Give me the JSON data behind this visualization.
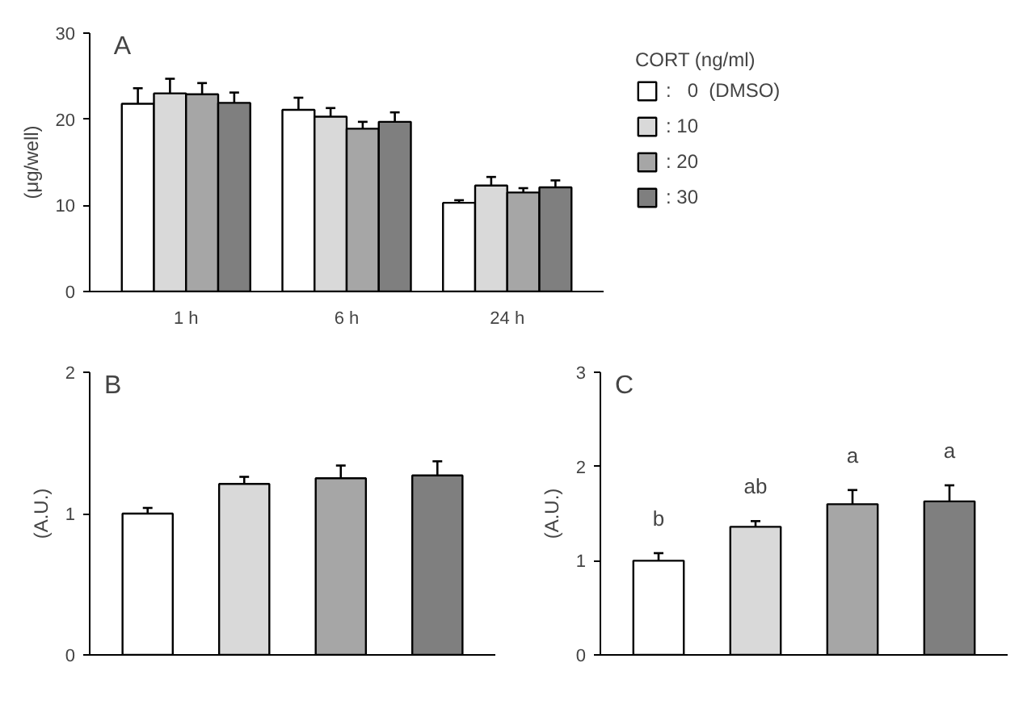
{
  "chart_data": [
    {
      "type": "bar",
      "title": "A",
      "ylabel": "(μg/well)",
      "categories": [
        "1 h",
        "6 h",
        "24 h"
      ],
      "ylim": [
        0,
        30
      ],
      "yticks": [
        0,
        10,
        20,
        30
      ],
      "grid": false,
      "legend": "right",
      "legend_title": "CORT (ng/ml)",
      "series": [
        {
          "name": ":   0  (DMSO)",
          "color": "#ffffff",
          "values": [
            21.8,
            21.1,
            10.3
          ],
          "errors": [
            [
              21.8,
              23.6
            ],
            [
              21.1,
              22.5
            ],
            [
              10.3,
              10.6
            ]
          ]
        },
        {
          "name": ": 10",
          "color": "#d9d9d9",
          "values": [
            23.0,
            20.3,
            12.3
          ],
          "errors": [
            [
              23.0,
              24.7
            ],
            [
              20.3,
              21.3
            ],
            [
              12.3,
              13.3
            ]
          ]
        },
        {
          "name": ": 20",
          "color": "#a6a6a6",
          "values": [
            22.9,
            18.9,
            11.5
          ],
          "errors": [
            [
              22.9,
              24.2
            ],
            [
              18.9,
              19.7
            ],
            [
              11.5,
              12.0
            ]
          ]
        },
        {
          "name": ": 30",
          "color": "#7f7f7f",
          "values": [
            21.9,
            19.7,
            12.1
          ],
          "errors": [
            [
              21.9,
              23.1
            ],
            [
              19.7,
              20.8
            ],
            [
              12.1,
              12.9
            ]
          ]
        }
      ]
    },
    {
      "type": "bar",
      "title": "B",
      "ylabel": "(A.U.)",
      "categories": [
        null,
        null,
        null,
        null
      ],
      "ylim": [
        0,
        2
      ],
      "yticks": [
        0,
        1,
        2
      ],
      "grid": false,
      "values": [
        1.0,
        1.21,
        1.25,
        1.27
      ],
      "colors": [
        "#ffffff",
        "#d9d9d9",
        "#a6a6a6",
        "#7f7f7f"
      ],
      "errors": [
        [
          1.0,
          1.04
        ],
        [
          1.21,
          1.26
        ],
        [
          1.25,
          1.34
        ],
        [
          1.27,
          1.37
        ]
      ]
    },
    {
      "type": "bar",
      "title": "C",
      "ylabel": "(A.U.)",
      "categories": [
        null,
        null,
        null,
        null
      ],
      "ylim": [
        0,
        3
      ],
      "yticks": [
        0,
        1,
        2,
        3
      ],
      "grid": false,
      "values": [
        1.0,
        1.36,
        1.6,
        1.63
      ],
      "colors": [
        "#ffffff",
        "#d9d9d9",
        "#a6a6a6",
        "#7f7f7f"
      ],
      "errors": [
        [
          1.0,
          1.08
        ],
        [
          1.36,
          1.42
        ],
        [
          1.6,
          1.75
        ],
        [
          1.63,
          1.8
        ]
      ],
      "annotations": [
        "b",
        "ab",
        "a",
        "a"
      ]
    }
  ]
}
